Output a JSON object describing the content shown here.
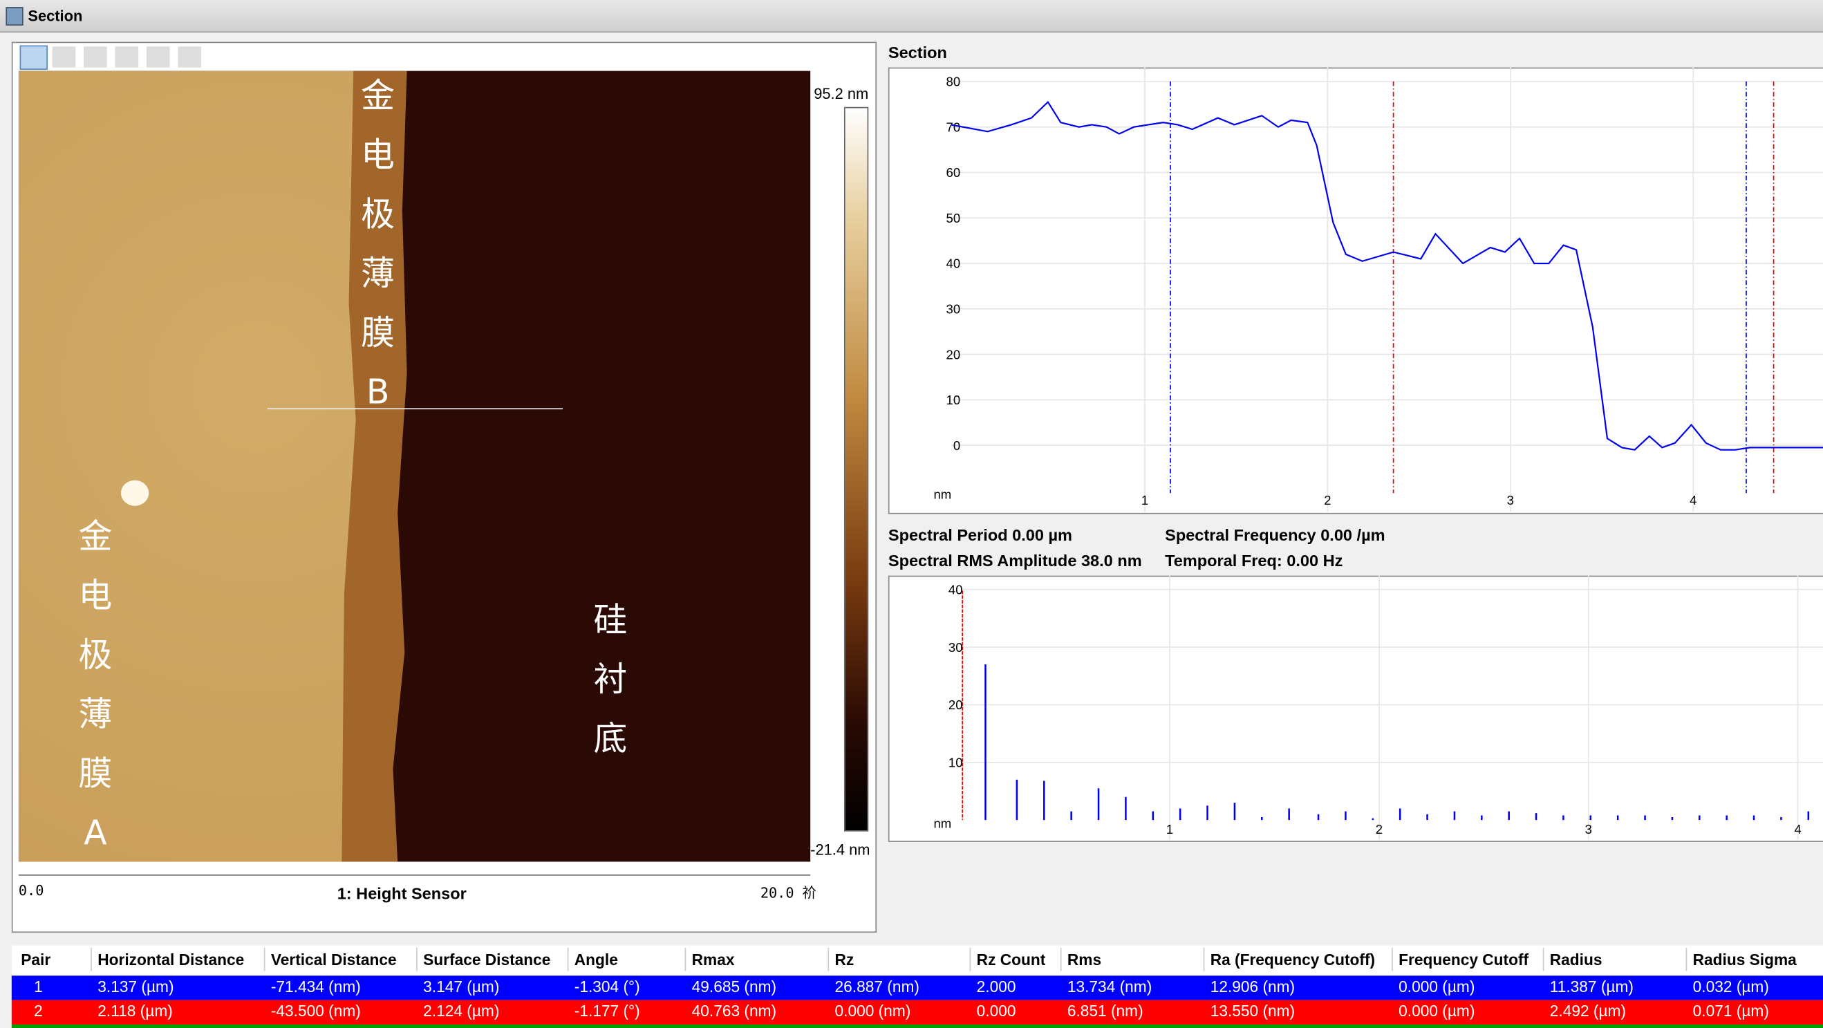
{
  "window": {
    "title": "Section"
  },
  "image": {
    "label_b": "金电极薄膜B",
    "label_a": "金电极薄膜A",
    "label_si": "硅衬底",
    "scale_max": "95.2 nm",
    "scale_min": "-21.4 nm",
    "x_start": "0.0",
    "x_end": "20.0 祄",
    "channel": "1: Height Sensor"
  },
  "section": {
    "title": "Section",
    "y_unit": "nm",
    "x": [
      -0.06,
      0.14,
      0.27,
      0.38,
      0.47,
      0.54,
      0.64,
      0.71,
      0.79,
      0.86,
      0.94,
      1.1,
      1.18,
      1.26,
      1.4,
      1.49,
      1.64,
      1.73,
      1.8,
      1.89,
      1.94,
      2.03,
      2.1,
      2.19,
      2.36,
      2.51,
      2.59,
      2.74,
      2.89,
      2.97,
      3.05,
      3.13,
      3.21,
      3.29,
      3.36,
      3.45,
      3.53,
      3.61,
      3.68,
      3.76,
      3.83,
      3.9,
      3.99,
      4.07,
      4.15,
      4.23,
      4.31,
      4.47,
      4.57,
      4.71
    ],
    "values": [
      70.5,
      69,
      70.5,
      72,
      75.5,
      71,
      70,
      70.5,
      70,
      68.5,
      70,
      71,
      70.5,
      69.5,
      72,
      70.5,
      72.5,
      70,
      71.5,
      71,
      66,
      49,
      42,
      40.5,
      42.5,
      41,
      46.5,
      40,
      43.5,
      42.5,
      45.5,
      40,
      40,
      44,
      43,
      26,
      1.5,
      -0.5,
      -1,
      2,
      -0.5,
      0.5,
      4.5,
      0.5,
      -1,
      -1,
      -0.5,
      -0.5,
      -0.5,
      -0.5
    ],
    "color": "#0000ee",
    "xlim": [
      -0.06,
      4.71
    ],
    "ylim": [
      -14.6,
      83.1
    ],
    "xticks": [
      1,
      2,
      3,
      4
    ],
    "yticks": [
      0,
      10,
      20,
      30,
      40,
      50,
      60,
      70,
      80
    ],
    "cursors": {
      "blue": [
        1.14,
        4.29
      ],
      "red": [
        2.36,
        4.44
      ]
    }
  },
  "spectral": {
    "period": "Spectral Period 0.00 µm",
    "frequency": "Spectral Frequency 0.00 /µm",
    "rms": "Spectral RMS Amplitude 38.0 nm",
    "temporal": "Temporal Freq: 0.00 Hz"
  },
  "spectrum": {
    "y_unit": "nm",
    "x": [
      0.12,
      0.27,
      0.4,
      0.53,
      0.66,
      0.79,
      0.92,
      1.05,
      1.18,
      1.31,
      1.44,
      1.57,
      1.71,
      1.84,
      1.97,
      2.1,
      2.23,
      2.36,
      2.49,
      2.62,
      2.75,
      2.88,
      3.01,
      3.14,
      3.27,
      3.4,
      3.53,
      3.66,
      3.79,
      3.92,
      4.05
    ],
    "values": [
      27,
      7,
      6.8,
      1.5,
      5.5,
      4,
      1.5,
      2,
      2.5,
      3,
      0.5,
      2,
      1,
      1.5,
      0.3,
      2,
      1,
      1.5,
      0.8,
      1.5,
      1.2,
      0.8,
      0.8,
      0.8,
      0.8,
      0.5,
      0.8,
      0.8,
      0.8,
      0.5,
      1.5
    ],
    "color": "#0000ee",
    "xlim": [
      0,
      4.12
    ],
    "ylim": [
      -3.4,
      42.4
    ],
    "xticks": [
      1,
      2,
      3,
      4
    ],
    "yticks": [
      10,
      20,
      30,
      40
    ],
    "cursor": 0.01
  },
  "table": {
    "headers": [
      "Pair",
      "Horizontal Distance",
      "Vertical Distance",
      "Surface Distance",
      "Angle",
      "Rmax",
      "Rz",
      "Rz Count",
      "Rms",
      "Ra (Frequency Cutoff)",
      "Frequency Cutoff",
      "Radius",
      "Radius Sigma"
    ],
    "rows": [
      [
        "1",
        "3.137 (µm)",
        "-71.434 (nm)",
        "3.147 (µm)",
        "-1.304 (°)",
        "49.685 (nm)",
        "26.887 (nm)",
        "2.000",
        "13.734 (nm)",
        "12.906 (nm)",
        "0.000 (µm)",
        "11.387 (µm)",
        "0.032 (µm)"
      ],
      [
        "2",
        "2.118 (µm)",
        "-43.500 (nm)",
        "2.124 (µm)",
        "-1.177 (°)",
        "40.763 (nm)",
        "0.000 (nm)",
        "0.000",
        "6.851 (nm)",
        "13.550 (nm)",
        "0.000 (µm)",
        "2.492 (µm)",
        "0.071 (µm)"
      ]
    ]
  }
}
